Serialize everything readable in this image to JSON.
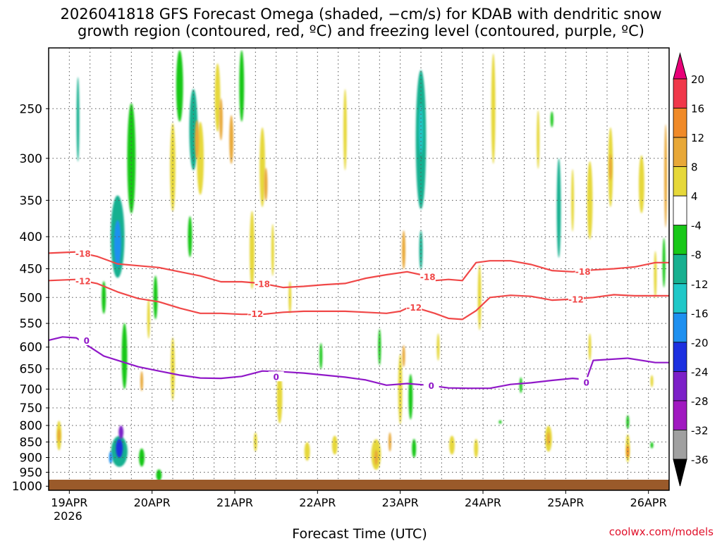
{
  "title_line1": "2026041818 GFS Forecast Omega (shaded, −cm/s) for KDAB with dendritic snow",
  "title_line2": "growth region (contoured, red, ºC) and freezing level (contoured, purple, ºC)",
  "credit": "coolwx.com/models",
  "chart_data": {
    "type": "heatmap",
    "title": "2026041818 GFS Forecast Omega (shaded, −cm/s) for KDAB with dendritic snow growth region (contoured, red, ºC) and freezing level (contoured, purple, ºC)",
    "xlabel": "Forecast Time (UTC)",
    "ylabel": "",
    "x_ticks": [
      {
        "label": "19APR",
        "sublabel": "2026",
        "hour": 6
      },
      {
        "label": "20APR",
        "hour": 30
      },
      {
        "label": "21APR",
        "hour": 54
      },
      {
        "label": "22APR",
        "hour": 78
      },
      {
        "label": "23APR",
        "hour": 102
      },
      {
        "label": "24APR",
        "hour": 126
      },
      {
        "label": "25APR",
        "hour": 150
      },
      {
        "label": "26APR",
        "hour": 174
      }
    ],
    "xlim_hours": [
      0,
      180
    ],
    "y_levels_hpa": [
      250,
      300,
      350,
      400,
      450,
      500,
      550,
      600,
      650,
      700,
      750,
      800,
      850,
      900,
      950,
      1000
    ],
    "ylim_hpa": [
      200,
      1015
    ],
    "colorbar": {
      "labels": [
        "20",
        "16",
        "12",
        "8",
        "4",
        "-4",
        "-8",
        "-12",
        "-16",
        "-20",
        "-24",
        "-28",
        "-32",
        "-36"
      ],
      "bands": [
        {
          "lo": 16,
          "hi": 20,
          "color": "#f0384a"
        },
        {
          "lo": 12,
          "hi": 16,
          "color": "#f08a28"
        },
        {
          "lo": 8,
          "hi": 12,
          "color": "#e8a838"
        },
        {
          "lo": 4,
          "hi": 8,
          "color": "#e6d83a"
        },
        {
          "lo": -4,
          "hi": 4,
          "color": "#ffffff"
        },
        {
          "lo": -8,
          "hi": -4,
          "color": "#18c818"
        },
        {
          "lo": -12,
          "hi": -8,
          "color": "#18b090"
        },
        {
          "lo": -16,
          "hi": -12,
          "color": "#20c8c8"
        },
        {
          "lo": -20,
          "hi": -16,
          "color": "#1e90f0"
        },
        {
          "lo": -24,
          "hi": -20,
          "color": "#1c30e0"
        },
        {
          "lo": -28,
          "hi": -24,
          "color": "#7c20c8"
        },
        {
          "lo": -32,
          "hi": -28,
          "color": "#a018c0"
        },
        {
          "lo": -36,
          "hi": -32,
          "color": "#a0a0a0"
        }
      ],
      "top_arrow_color": "#e80078",
      "bottom_arrow_color": "#000000"
    },
    "contours": [
      {
        "label": "-18",
        "color": "#f04848",
        "hours": [
          0,
          8,
          14,
          20,
          26,
          32,
          38,
          44,
          50,
          56,
          62,
          68,
          74,
          80,
          86,
          92,
          98,
          104,
          108,
          112,
          116,
          120,
          124,
          128,
          134,
          140,
          146,
          152,
          158,
          164,
          170,
          176,
          180
        ],
        "hpa": [
          425,
          423,
          430,
          442,
          445,
          448,
          455,
          462,
          472,
          472,
          475,
          482,
          480,
          477,
          475,
          466,
          460,
          455,
          460,
          470,
          468,
          470,
          440,
          437,
          437,
          443,
          453,
          455,
          452,
          450,
          447,
          440,
          440
        ]
      },
      {
        "label": "-12",
        "color": "#f04848",
        "hours": [
          0,
          8,
          14,
          20,
          26,
          32,
          38,
          44,
          50,
          56,
          62,
          68,
          74,
          80,
          86,
          92,
          98,
          102,
          104,
          108,
          112,
          116,
          120,
          124,
          128,
          134,
          140,
          146,
          152,
          158,
          164,
          170,
          176,
          180
        ],
        "hpa": [
          470,
          468,
          475,
          490,
          502,
          508,
          520,
          530,
          530,
          532,
          532,
          528,
          526,
          526,
          526,
          528,
          530,
          526,
          520,
          522,
          530,
          540,
          542,
          525,
          500,
          496,
          498,
          505,
          503,
          500,
          495,
          497,
          497,
          497
        ]
      },
      {
        "label": "0",
        "color": "#9018c8",
        "hours": [
          0,
          4,
          8,
          12,
          16,
          20,
          26,
          32,
          38,
          44,
          50,
          56,
          62,
          68,
          74,
          80,
          86,
          92,
          98,
          104,
          110,
          116,
          122,
          128,
          134,
          140,
          146,
          152,
          156,
          158,
          162,
          168,
          176,
          180
        ],
        "hpa": [
          585,
          578,
          580,
          600,
          620,
          630,
          645,
          655,
          665,
          672,
          673,
          668,
          655,
          657,
          660,
          665,
          670,
          677,
          690,
          686,
          690,
          697,
          698,
          698,
          688,
          684,
          678,
          673,
          676,
          630,
          628,
          625,
          635,
          635
        ]
      }
    ],
    "contour_labels": [
      {
        "text": "-18",
        "hour": 10,
        "hpa": 425,
        "color": "#f04848"
      },
      {
        "text": "-18",
        "hour": 62,
        "hpa": 475,
        "color": "#f04848"
      },
      {
        "text": "-18",
        "hour": 110,
        "hpa": 463,
        "color": "#f04848"
      },
      {
        "text": "-18",
        "hour": 155,
        "hpa": 454,
        "color": "#f04848"
      },
      {
        "text": "-12",
        "hour": 10,
        "hpa": 470,
        "color": "#f04848"
      },
      {
        "text": "-12",
        "hour": 60,
        "hpa": 530,
        "color": "#f04848"
      },
      {
        "text": "-12",
        "hour": 106,
        "hpa": 518,
        "color": "#f04848"
      },
      {
        "text": "-12",
        "hour": 153,
        "hpa": 503,
        "color": "#f04848"
      },
      {
        "text": "0",
        "hour": 11,
        "hpa": 585,
        "color": "#9018c8"
      },
      {
        "text": "0",
        "hour": 66,
        "hpa": 668,
        "color": "#9018c8"
      },
      {
        "text": "0",
        "hour": 111,
        "hpa": 690,
        "color": "#9018c8"
      },
      {
        "text": "0",
        "hour": 156,
        "hpa": 682,
        "color": "#9018c8"
      }
    ],
    "features": [
      {
        "hour": 20,
        "hpa": 400,
        "dh": 2.0,
        "dp": 120,
        "value": -10
      },
      {
        "hour": 20,
        "hpa": 410,
        "dh": 1.0,
        "dp": 70,
        "value": -18
      },
      {
        "hour": 20.5,
        "hpa": 880,
        "dh": 2.4,
        "dp": 100,
        "value": -12
      },
      {
        "hour": 20.5,
        "hpa": 870,
        "dh": 1.0,
        "dp": 60,
        "value": -22
      },
      {
        "hour": 21,
        "hpa": 820,
        "dh": 0.7,
        "dp": 40,
        "value": -28
      },
      {
        "hour": 18,
        "hpa": 900,
        "dh": 0.5,
        "dp": 40,
        "value": -20
      },
      {
        "hour": 8.5,
        "hpa": 260,
        "dh": 0.4,
        "dp": 80,
        "value": -10
      },
      {
        "hour": 22,
        "hpa": 620,
        "dh": 0.8,
        "dp": 150,
        "value": -6
      },
      {
        "hour": 24,
        "hpa": 300,
        "dh": 1.2,
        "dp": 120,
        "value": -6
      },
      {
        "hour": 16,
        "hpa": 500,
        "dh": 0.6,
        "dp": 60,
        "value": -6
      },
      {
        "hour": 27,
        "hpa": 900,
        "dh": 0.8,
        "dp": 60,
        "value": -6
      },
      {
        "hour": 32,
        "hpa": 960,
        "dh": 0.8,
        "dp": 40,
        "value": -6
      },
      {
        "hour": 31,
        "hpa": 500,
        "dh": 0.6,
        "dp": 80,
        "value": -6
      },
      {
        "hour": 38,
        "hpa": 230,
        "dh": 1.0,
        "dp": 60,
        "value": -6
      },
      {
        "hour": 42,
        "hpa": 270,
        "dh": 1.2,
        "dp": 80,
        "value": -10
      },
      {
        "hour": 41,
        "hpa": 400,
        "dh": 0.6,
        "dp": 60,
        "value": -6
      },
      {
        "hour": 56,
        "hpa": 230,
        "dh": 0.7,
        "dp": 60,
        "value": -6
      },
      {
        "hour": 79,
        "hpa": 620,
        "dh": 0.4,
        "dp": 60,
        "value": -6
      },
      {
        "hour": 108,
        "hpa": 280,
        "dh": 1.5,
        "dp": 140,
        "value": -10
      },
      {
        "hour": 108,
        "hpa": 270,
        "dh": 0.6,
        "dp": 50,
        "value": -14
      },
      {
        "hour": 108,
        "hpa": 420,
        "dh": 0.5,
        "dp": 60,
        "value": -12
      },
      {
        "hour": 105,
        "hpa": 720,
        "dh": 0.6,
        "dp": 120,
        "value": -6
      },
      {
        "hour": 106,
        "hpa": 870,
        "dh": 0.6,
        "dp": 60,
        "value": -6
      },
      {
        "hour": 96,
        "hpa": 600,
        "dh": 0.4,
        "dp": 80,
        "value": -6
      },
      {
        "hour": 148,
        "hpa": 360,
        "dh": 0.6,
        "dp": 130,
        "value": -10
      },
      {
        "hour": 137,
        "hpa": 690,
        "dh": 0.4,
        "dp": 40,
        "value": -6
      },
      {
        "hour": 146,
        "hpa": 260,
        "dh": 0.3,
        "dp": 15,
        "value": -6
      },
      {
        "hour": 168,
        "hpa": 790,
        "dh": 0.4,
        "dp": 40,
        "value": -6
      },
      {
        "hour": 178.5,
        "hpa": 440,
        "dh": 0.4,
        "dp": 80,
        "value": -6
      },
      {
        "hour": 175,
        "hpa": 860,
        "dh": 0.3,
        "dp": 20,
        "value": -6
      },
      {
        "hour": 131,
        "hpa": 790,
        "dh": 0.3,
        "dp": 10,
        "value": -6
      },
      {
        "hour": 44,
        "hpa": 300,
        "dh": 1.0,
        "dp": 80,
        "value": 6
      },
      {
        "hour": 43,
        "hpa": 280,
        "dh": 0.6,
        "dp": 40,
        "value": 10
      },
      {
        "hour": 49,
        "hpa": 240,
        "dh": 0.8,
        "dp": 60,
        "value": 6
      },
      {
        "hour": 50,
        "hpa": 260,
        "dh": 0.5,
        "dp": 40,
        "value": 10
      },
      {
        "hour": 53,
        "hpa": 280,
        "dh": 0.6,
        "dp": 50,
        "value": 10
      },
      {
        "hour": 36,
        "hpa": 310,
        "dh": 0.8,
        "dp": 100,
        "value": 6
      },
      {
        "hour": 36,
        "hpa": 650,
        "dh": 0.6,
        "dp": 150,
        "value": 6
      },
      {
        "hour": 62,
        "hpa": 310,
        "dh": 0.8,
        "dp": 90,
        "value": 6
      },
      {
        "hour": 63,
        "hpa": 330,
        "dh": 0.5,
        "dp": 40,
        "value": 10
      },
      {
        "hour": 59,
        "hpa": 420,
        "dh": 0.7,
        "dp": 120,
        "value": 6
      },
      {
        "hour": 67,
        "hpa": 720,
        "dh": 0.8,
        "dp": 140,
        "value": 6
      },
      {
        "hour": 60,
        "hpa": 850,
        "dh": 0.5,
        "dp": 60,
        "value": 6
      },
      {
        "hour": 75,
        "hpa": 880,
        "dh": 0.8,
        "dp": 60,
        "value": 6
      },
      {
        "hour": 83,
        "hpa": 860,
        "dh": 0.8,
        "dp": 60,
        "value": 6
      },
      {
        "hour": 95,
        "hpa": 890,
        "dh": 1.4,
        "dp": 100,
        "value": 6
      },
      {
        "hour": 95,
        "hpa": 900,
        "dh": 0.5,
        "dp": 50,
        "value": 10
      },
      {
        "hour": 102,
        "hpa": 700,
        "dh": 0.6,
        "dp": 180,
        "value": 6
      },
      {
        "hour": 103,
        "hpa": 420,
        "dh": 0.5,
        "dp": 60,
        "value": 10
      },
      {
        "hour": 103,
        "hpa": 620,
        "dh": 0.4,
        "dp": 50,
        "value": 10
      },
      {
        "hour": 99,
        "hpa": 850,
        "dh": 0.4,
        "dp": 60,
        "value": 10
      },
      {
        "hour": 117,
        "hpa": 860,
        "dh": 0.8,
        "dp": 60,
        "value": 6
      },
      {
        "hour": 125,
        "hpa": 500,
        "dh": 0.5,
        "dp": 120,
        "value": 6
      },
      {
        "hour": 124,
        "hpa": 870,
        "dh": 0.6,
        "dp": 60,
        "value": 6
      },
      {
        "hour": 129,
        "hpa": 250,
        "dh": 0.6,
        "dp": 100,
        "value": 6
      },
      {
        "hour": 145,
        "hpa": 840,
        "dh": 1.0,
        "dp": 80,
        "value": 6
      },
      {
        "hour": 145,
        "hpa": 840,
        "dh": 0.4,
        "dp": 40,
        "value": 10
      },
      {
        "hour": 157,
        "hpa": 600,
        "dh": 0.4,
        "dp": 60,
        "value": 6
      },
      {
        "hour": 157,
        "hpa": 350,
        "dh": 0.8,
        "dp": 100,
        "value": 6
      },
      {
        "hour": 163,
        "hpa": 310,
        "dh": 0.7,
        "dp": 90,
        "value": 6
      },
      {
        "hour": 163,
        "hpa": 310,
        "dh": 0.3,
        "dp": 30,
        "value": 10
      },
      {
        "hour": 168,
        "hpa": 870,
        "dh": 0.6,
        "dp": 90,
        "value": 6
      },
      {
        "hour": 168,
        "hpa": 880,
        "dh": 0.3,
        "dp": 40,
        "value": 12
      },
      {
        "hour": 172,
        "hpa": 330,
        "dh": 0.8,
        "dp": 70,
        "value": 6
      },
      {
        "hour": 179,
        "hpa": 320,
        "dh": 0.3,
        "dp": 120,
        "value": 10
      },
      {
        "hour": 176,
        "hpa": 460,
        "dh": 0.4,
        "dp": 80,
        "value": 6
      },
      {
        "hour": 175,
        "hpa": 680,
        "dh": 0.4,
        "dp": 30,
        "value": 6
      },
      {
        "hour": 3,
        "hpa": 830,
        "dh": 0.7,
        "dp": 90,
        "value": 6
      },
      {
        "hour": 3,
        "hpa": 830,
        "dh": 0.3,
        "dp": 40,
        "value": 10
      },
      {
        "hour": 29,
        "hpa": 540,
        "dh": 0.4,
        "dp": 80,
        "value": 6
      },
      {
        "hour": 27,
        "hpa": 680,
        "dh": 0.4,
        "dp": 50,
        "value": 10
      },
      {
        "hour": 65,
        "hpa": 420,
        "dh": 0.4,
        "dp": 80,
        "value": 6
      },
      {
        "hour": 70,
        "hpa": 500,
        "dh": 0.4,
        "dp": 60,
        "value": 6
      },
      {
        "hour": 142,
        "hpa": 280,
        "dh": 0.4,
        "dp": 60,
        "value": 6
      },
      {
        "hour": 152,
        "hpa": 350,
        "dh": 0.4,
        "dp": 80,
        "value": 6
      },
      {
        "hour": 86,
        "hpa": 270,
        "dh": 0.5,
        "dp": 80,
        "value": 6
      },
      {
        "hour": 113,
        "hpa": 600,
        "dh": 0.4,
        "dp": 60,
        "value": 6
      }
    ]
  }
}
